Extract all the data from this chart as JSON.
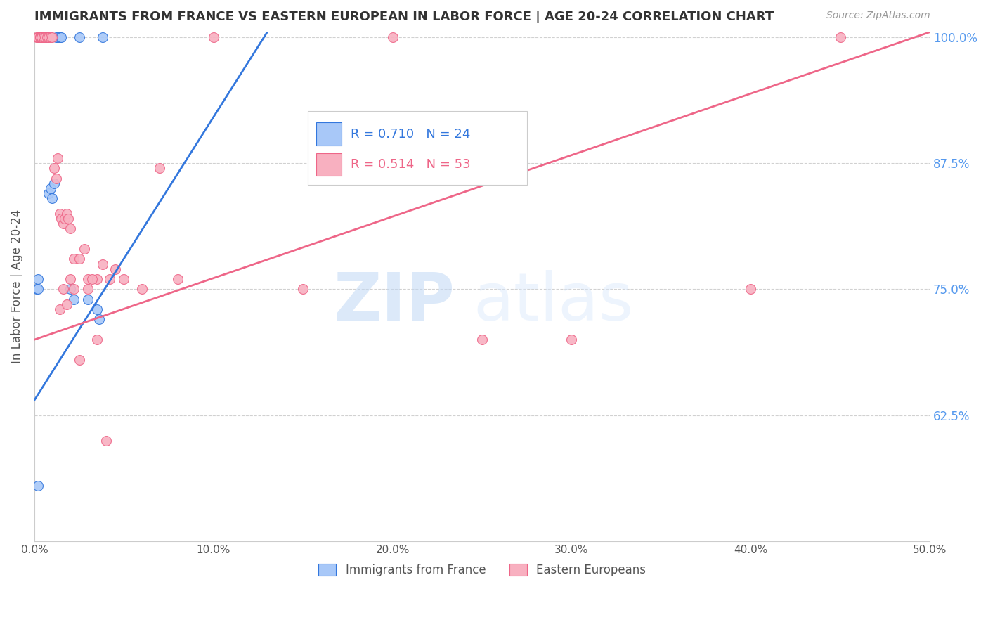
{
  "title": "IMMIGRANTS FROM FRANCE VS EASTERN EUROPEAN IN LABOR FORCE | AGE 20-24 CORRELATION CHART",
  "source_text": "Source: ZipAtlas.com",
  "ylabel": "In Labor Force | Age 20-24",
  "xlim": [
    0.0,
    0.5
  ],
  "ylim": [
    0.5,
    1.005
  ],
  "xticks": [
    0.0,
    0.1,
    0.2,
    0.3,
    0.4,
    0.5
  ],
  "yticks_right": [
    0.625,
    0.75,
    0.875,
    1.0
  ],
  "ytick_labels_right": [
    "62.5%",
    "75.0%",
    "87.5%",
    "100.0%"
  ],
  "xtick_labels": [
    "0.0%",
    "10.0%",
    "20.0%",
    "30.0%",
    "40.0%",
    "50.0%"
  ],
  "france_R": 0.71,
  "france_N": 24,
  "eastern_R": 0.514,
  "eastern_N": 53,
  "france_color": "#a8c8f8",
  "eastern_color": "#f8b0c0",
  "france_line_color": "#3377dd",
  "eastern_line_color": "#ee6688",
  "legend_france_label": "Immigrants from France",
  "legend_eastern_label": "Eastern Europeans",
  "watermark_zip": "ZIP",
  "watermark_atlas": "atlas",
  "background_color": "#ffffff",
  "grid_color": "#cccccc",
  "title_color": "#333333",
  "axis_label_color": "#555555",
  "right_tick_color": "#5599ee",
  "france_scatter_x": [
    0.001,
    0.002,
    0.002,
    0.003,
    0.004,
    0.005,
    0.006,
    0.007,
    0.008,
    0.009,
    0.01,
    0.011,
    0.012,
    0.013,
    0.014,
    0.015,
    0.02,
    0.022,
    0.025,
    0.03,
    0.035,
    0.036,
    0.038,
    0.002
  ],
  "france_scatter_y": [
    0.75,
    0.76,
    0.75,
    1.0,
    1.0,
    1.0,
    1.0,
    1.0,
    0.845,
    0.85,
    0.84,
    0.855,
    1.0,
    1.0,
    1.0,
    1.0,
    0.75,
    0.74,
    1.0,
    0.74,
    0.73,
    0.72,
    1.0,
    0.555
  ],
  "eastern_scatter_x": [
    0.001,
    0.002,
    0.002,
    0.003,
    0.003,
    0.004,
    0.004,
    0.005,
    0.005,
    0.006,
    0.007,
    0.008,
    0.009,
    0.01,
    0.011,
    0.012,
    0.013,
    0.014,
    0.015,
    0.016,
    0.017,
    0.018,
    0.019,
    0.02,
    0.022,
    0.025,
    0.028,
    0.03,
    0.035,
    0.038,
    0.042,
    0.045,
    0.05,
    0.06,
    0.07,
    0.08,
    0.1,
    0.15,
    0.2,
    0.25,
    0.3,
    0.4,
    0.45,
    0.014,
    0.016,
    0.018,
    0.02,
    0.022,
    0.025,
    0.03,
    0.032,
    0.035,
    0.04
  ],
  "eastern_scatter_y": [
    1.0,
    1.0,
    1.0,
    1.0,
    1.0,
    1.0,
    1.0,
    1.0,
    1.0,
    1.0,
    1.0,
    1.0,
    1.0,
    1.0,
    0.87,
    0.86,
    0.88,
    0.825,
    0.82,
    0.815,
    0.82,
    0.825,
    0.82,
    0.81,
    0.78,
    0.78,
    0.79,
    0.76,
    0.76,
    0.775,
    0.76,
    0.77,
    0.76,
    0.75,
    0.87,
    0.76,
    1.0,
    0.75,
    1.0,
    0.7,
    0.7,
    0.75,
    1.0,
    0.73,
    0.75,
    0.735,
    0.76,
    0.75,
    0.68,
    0.75,
    0.76,
    0.7,
    0.6
  ],
  "france_line_x0": 0.0,
  "france_line_y0": 0.64,
  "france_line_x1": 0.13,
  "france_line_y1": 1.005,
  "eastern_line_x0": 0.0,
  "eastern_line_y0": 0.7,
  "eastern_line_x1": 0.5,
  "eastern_line_y1": 1.005
}
